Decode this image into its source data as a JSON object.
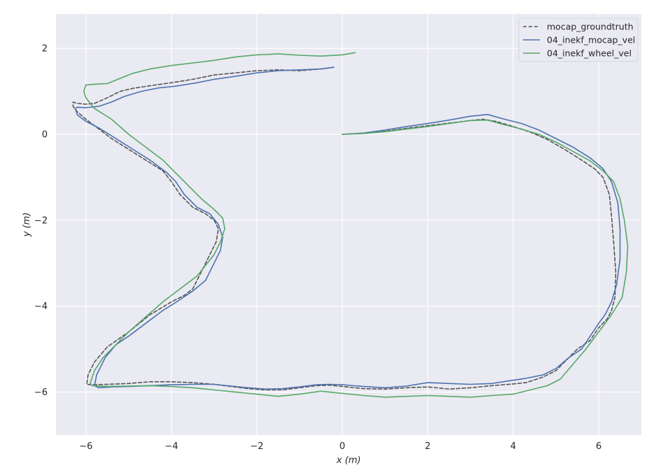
{
  "chart_data": {
    "type": "line",
    "title": "",
    "xlabel": "x (m)",
    "ylabel": "y (m)",
    "xlim": [
      -6.7,
      7.0
    ],
    "ylim": [
      -7.0,
      2.8
    ],
    "xticks": [
      -6,
      -4,
      -2,
      0,
      2,
      4,
      6
    ],
    "yticks": [
      -6,
      -4,
      -2,
      0,
      2
    ],
    "xtick_labels": [
      "−6",
      "−4",
      "−2",
      "0",
      "2",
      "4",
      "6"
    ],
    "ytick_labels": [
      "−6",
      "−4",
      "−2",
      "0",
      "2"
    ],
    "grid": true,
    "background": "#eaeaf2",
    "legend_position": "top-right",
    "series": [
      {
        "name": "mocap_groundtruth",
        "color": "#555555",
        "style": "dashed",
        "x": [
          0.0,
          0.5,
          1.0,
          1.5,
          2.0,
          2.5,
          3.0,
          3.3,
          3.6,
          4.0,
          4.4,
          4.8,
          5.2,
          5.6,
          5.9,
          6.1,
          6.25,
          6.3,
          6.35,
          6.4,
          6.38,
          6.3,
          6.2,
          6.0,
          5.8,
          5.5,
          5.2,
          5.0,
          4.7,
          4.3,
          3.9,
          3.5,
          3.0,
          2.5,
          2.0,
          1.5,
          1.0,
          0.5,
          0.0,
          -0.3,
          -0.6,
          -1.0,
          -1.4,
          -1.8,
          -2.2,
          -2.6,
          -3.0,
          -3.5,
          -4.0,
          -4.5,
          -5.0,
          -5.5,
          -5.9,
          -5.98,
          -5.95,
          -5.8,
          -5.5,
          -5.0,
          -4.5,
          -4.0,
          -3.7,
          -3.5,
          -3.3,
          -3.1,
          -2.95,
          -2.9,
          -3.0,
          -3.2,
          -3.5,
          -3.8,
          -4.0,
          -4.2,
          -4.6,
          -5.0,
          -5.4,
          -5.8,
          -6.0,
          -6.2,
          -6.3,
          -6.3,
          -6.2,
          -6.0,
          -5.8,
          -5.5,
          -5.2,
          -4.9,
          -4.5,
          -4.0,
          -3.5,
          -3.0,
          -2.5,
          -2.0,
          -1.5,
          -1.0,
          -0.5,
          -0.2
        ],
        "y": [
          0.0,
          0.02,
          0.07,
          0.14,
          0.2,
          0.26,
          0.32,
          0.35,
          0.3,
          0.18,
          0.05,
          -0.12,
          -0.35,
          -0.6,
          -0.8,
          -1.0,
          -1.4,
          -1.9,
          -2.5,
          -3.2,
          -3.8,
          -4.1,
          -4.3,
          -4.5,
          -4.8,
          -5.0,
          -5.3,
          -5.5,
          -5.65,
          -5.78,
          -5.82,
          -5.85,
          -5.9,
          -5.93,
          -5.88,
          -5.9,
          -5.93,
          -5.92,
          -5.87,
          -5.84,
          -5.85,
          -5.9,
          -5.95,
          -5.95,
          -5.92,
          -5.87,
          -5.82,
          -5.78,
          -5.76,
          -5.76,
          -5.8,
          -5.82,
          -5.83,
          -5.82,
          -5.6,
          -5.3,
          -4.95,
          -4.6,
          -4.2,
          -3.9,
          -3.75,
          -3.6,
          -3.2,
          -2.8,
          -2.5,
          -2.2,
          -2.0,
          -1.85,
          -1.7,
          -1.4,
          -1.1,
          -0.85,
          -0.6,
          -0.35,
          -0.1,
          0.2,
          0.35,
          0.52,
          0.65,
          0.75,
          0.72,
          0.7,
          0.72,
          0.85,
          1.0,
          1.07,
          1.13,
          1.2,
          1.28,
          1.38,
          1.43,
          1.48,
          1.5,
          1.48,
          1.52,
          1.56
        ]
      },
      {
        "name": "04_inekf_mocap_vel",
        "color": "#4c72b0",
        "style": "solid",
        "x": [
          0.0,
          0.5,
          1.0,
          1.5,
          2.0,
          2.5,
          3.0,
          3.4,
          3.8,
          4.2,
          4.6,
          5.0,
          5.4,
          5.8,
          6.1,
          6.3,
          6.45,
          6.5,
          6.5,
          6.42,
          6.3,
          6.15,
          6.0,
          5.8,
          5.6,
          5.3,
          5.0,
          4.7,
          4.3,
          3.9,
          3.5,
          3.0,
          2.5,
          2.0,
          1.5,
          1.0,
          0.5,
          0.0,
          -0.3,
          -0.6,
          -1.0,
          -1.4,
          -1.8,
          -2.2,
          -2.6,
          -3.0,
          -3.5,
          -4.0,
          -4.5,
          -5.0,
          -5.4,
          -5.7,
          -5.8,
          -5.75,
          -5.55,
          -5.3,
          -5.0,
          -4.6,
          -4.2,
          -3.8,
          -3.5,
          -3.2,
          -3.0,
          -2.85,
          -2.8,
          -2.9,
          -3.1,
          -3.4,
          -3.7,
          -3.9,
          -4.1,
          -4.5,
          -4.9,
          -5.3,
          -5.7,
          -6.0,
          -6.2,
          -6.25,
          -6.2,
          -6.0,
          -5.7,
          -5.4,
          -5.1,
          -4.7,
          -4.3,
          -3.9,
          -3.4,
          -3.0,
          -2.5,
          -2.0,
          -1.5,
          -1.0,
          -0.5,
          -0.2
        ],
        "y": [
          0.0,
          0.03,
          0.1,
          0.18,
          0.25,
          0.33,
          0.42,
          0.46,
          0.35,
          0.25,
          0.1,
          -0.1,
          -0.3,
          -0.55,
          -0.8,
          -1.1,
          -1.6,
          -2.2,
          -2.9,
          -3.5,
          -3.9,
          -4.2,
          -4.4,
          -4.7,
          -5.0,
          -5.2,
          -5.45,
          -5.6,
          -5.68,
          -5.74,
          -5.8,
          -5.82,
          -5.8,
          -5.78,
          -5.86,
          -5.9,
          -5.87,
          -5.83,
          -5.82,
          -5.83,
          -5.88,
          -5.92,
          -5.93,
          -5.9,
          -5.86,
          -5.82,
          -5.82,
          -5.83,
          -5.85,
          -5.87,
          -5.88,
          -5.9,
          -5.85,
          -5.6,
          -5.2,
          -4.9,
          -4.7,
          -4.4,
          -4.1,
          -3.85,
          -3.65,
          -3.4,
          -3.0,
          -2.7,
          -2.4,
          -2.1,
          -1.85,
          -1.7,
          -1.4,
          -1.1,
          -0.9,
          -0.6,
          -0.35,
          -0.1,
          0.15,
          0.3,
          0.45,
          0.6,
          0.63,
          0.62,
          0.65,
          0.75,
          0.88,
          1.0,
          1.08,
          1.12,
          1.2,
          1.28,
          1.35,
          1.43,
          1.48,
          1.5,
          1.52,
          1.56
        ]
      },
      {
        "name": "04_inekf_wheel_vel",
        "color": "#55a868",
        "style": "solid",
        "x": [
          0.0,
          0.5,
          1.0,
          1.5,
          2.0,
          2.5,
          3.0,
          3.4,
          3.8,
          4.2,
          4.6,
          5.0,
          5.4,
          5.8,
          6.1,
          6.35,
          6.5,
          6.6,
          6.68,
          6.65,
          6.55,
          6.3,
          6.0,
          5.7,
          5.4,
          5.1,
          4.8,
          4.4,
          4.0,
          3.5,
          3.0,
          2.5,
          2.0,
          1.5,
          1.0,
          0.5,
          0.0,
          -0.5,
          -1.0,
          -1.5,
          -2.0,
          -2.5,
          -3.0,
          -3.5,
          -4.0,
          -4.5,
          -5.0,
          -5.5,
          -5.85,
          -5.9,
          -5.8,
          -5.6,
          -5.3,
          -5.0,
          -4.6,
          -4.2,
          -3.8,
          -3.4,
          -3.0,
          -2.85,
          -2.75,
          -2.8,
          -3.0,
          -3.3,
          -3.6,
          -3.9,
          -4.2,
          -4.6,
          -5.0,
          -5.4,
          -5.8,
          -6.0,
          -6.05,
          -6.0,
          -5.7,
          -5.5,
          -5.2,
          -4.9,
          -4.5,
          -4.0,
          -3.5,
          -3.0,
          -2.5,
          -2.0,
          -1.5,
          -1.0,
          -0.5,
          0.0,
          0.3
        ],
        "y": [
          0.0,
          0.02,
          0.06,
          0.12,
          0.18,
          0.25,
          0.32,
          0.33,
          0.22,
          0.12,
          0.0,
          -0.18,
          -0.4,
          -0.62,
          -0.85,
          -1.1,
          -1.5,
          -2.0,
          -2.6,
          -3.2,
          -3.8,
          -4.2,
          -4.6,
          -5.0,
          -5.35,
          -5.7,
          -5.85,
          -5.95,
          -6.05,
          -6.08,
          -6.12,
          -6.1,
          -6.08,
          -6.1,
          -6.12,
          -6.08,
          -6.03,
          -5.98,
          -6.05,
          -6.1,
          -6.05,
          -6.0,
          -5.95,
          -5.9,
          -5.87,
          -5.85,
          -5.86,
          -5.87,
          -5.85,
          -5.8,
          -5.5,
          -5.2,
          -4.9,
          -4.6,
          -4.25,
          -3.9,
          -3.6,
          -3.3,
          -2.8,
          -2.5,
          -2.2,
          -1.95,
          -1.75,
          -1.5,
          -1.2,
          -0.9,
          -0.6,
          -0.3,
          0.0,
          0.35,
          0.6,
          0.85,
          1.0,
          1.15,
          1.17,
          1.18,
          1.3,
          1.42,
          1.52,
          1.6,
          1.66,
          1.72,
          1.8,
          1.85,
          1.87,
          1.84,
          1.82,
          1.85,
          1.9
        ]
      }
    ]
  }
}
